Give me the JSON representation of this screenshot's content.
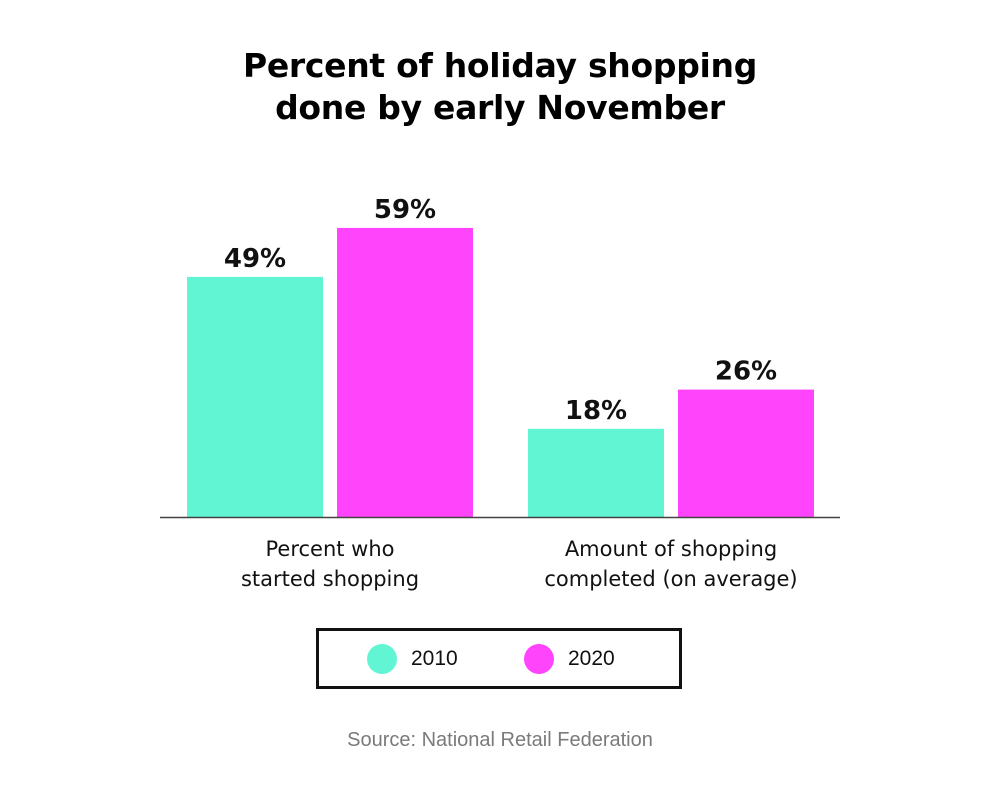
{
  "title_lines": [
    "Percent of holiday shopping",
    "done by early November"
  ],
  "source": "Source: National Retail Federation",
  "colors": {
    "series_2010": "#62f5d4",
    "series_2020": "#ff44fb",
    "axis": "#444444"
  },
  "chart_data": {
    "type": "bar",
    "title": "Percent of holiday shopping done by early November",
    "categories": [
      [
        "Percent who",
        "started shopping"
      ],
      [
        "Amount of shopping",
        "completed (on average)"
      ]
    ],
    "series": [
      {
        "name": "2010",
        "values": [
          49,
          18
        ],
        "labels": [
          "49%",
          "18%"
        ]
      },
      {
        "name": "2020",
        "values": [
          59,
          26
        ],
        "labels": [
          "59%",
          "26%"
        ]
      }
    ],
    "ylim": [
      0,
      60
    ],
    "grid": false,
    "legend": "bottom",
    "xlabel": "",
    "ylabel": ""
  }
}
